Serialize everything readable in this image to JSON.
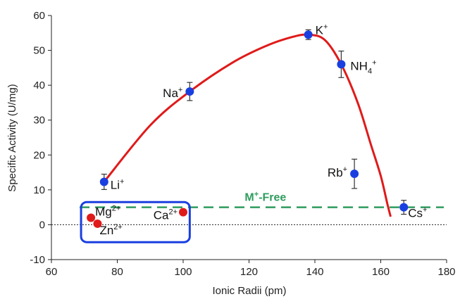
{
  "chart_data": {
    "type": "scatter",
    "xlabel": "Ionic Radii (pm)",
    "ylabel": "Specific Activity (U/mg)",
    "xlim": [
      60,
      180
    ],
    "ylim": [
      -10,
      60
    ],
    "xticks": [
      "60",
      "80",
      "100",
      "120",
      "140",
      "160",
      "180"
    ],
    "yticks": [
      "-10",
      "0",
      "10",
      "20",
      "30",
      "40",
      "50",
      "60"
    ],
    "grid": false,
    "series": [
      {
        "group": "monovalent",
        "color": "#1a3fe0",
        "points": [
          {
            "ion": "Li",
            "charge": "+",
            "x": 76,
            "y": 12.3,
            "err": 2.2
          },
          {
            "ion": "Na",
            "charge": "+",
            "x": 102,
            "y": 38.2,
            "err": 2.6
          },
          {
            "ion": "K",
            "charge": "+",
            "x": 138,
            "y": 54.5,
            "err": 1.4
          },
          {
            "ion": "NH",
            "sub": "4",
            "charge": "+",
            "x": 148,
            "y": 46.0,
            "err": 3.8
          },
          {
            "ion": "Rb",
            "charge": "+",
            "x": 152,
            "y": 14.6,
            "err": 4.2
          },
          {
            "ion": "Cs",
            "charge": "+",
            "x": 167,
            "y": 5.0,
            "err": 2.0
          }
        ]
      },
      {
        "group": "divalent",
        "color": "#e01a1a",
        "points": [
          {
            "ion": "Mg",
            "charge": "2+",
            "x": 72,
            "y": 2.0
          },
          {
            "ion": "Zn",
            "charge": "2+",
            "x": 74,
            "y": 0.3
          },
          {
            "ion": "Ca",
            "charge": "2+",
            "x": 100,
            "y": 3.6
          }
        ]
      }
    ],
    "fit_curve": {
      "color": "#e01a1a",
      "x": [
        76,
        90,
        102,
        115,
        125,
        133,
        138,
        143,
        148,
        153,
        157,
        160,
        162,
        163
      ],
      "y": [
        12.3,
        28.5,
        38.2,
        46.5,
        51.2,
        53.8,
        54.5,
        53.0,
        46.0,
        35.0,
        23.0,
        14.0,
        6.0,
        2.3
      ]
    },
    "reference_line": {
      "label": "M",
      "label_sup": "+",
      "label_suffix": "-Free",
      "y": 5.0,
      "color": "#2e9c5e"
    },
    "zero_line": {
      "y": 0
    },
    "highlight_box": {
      "x_range": [
        69,
        102
      ],
      "y_range": [
        -5,
        6.5
      ],
      "color": "#1a3fe0"
    }
  }
}
